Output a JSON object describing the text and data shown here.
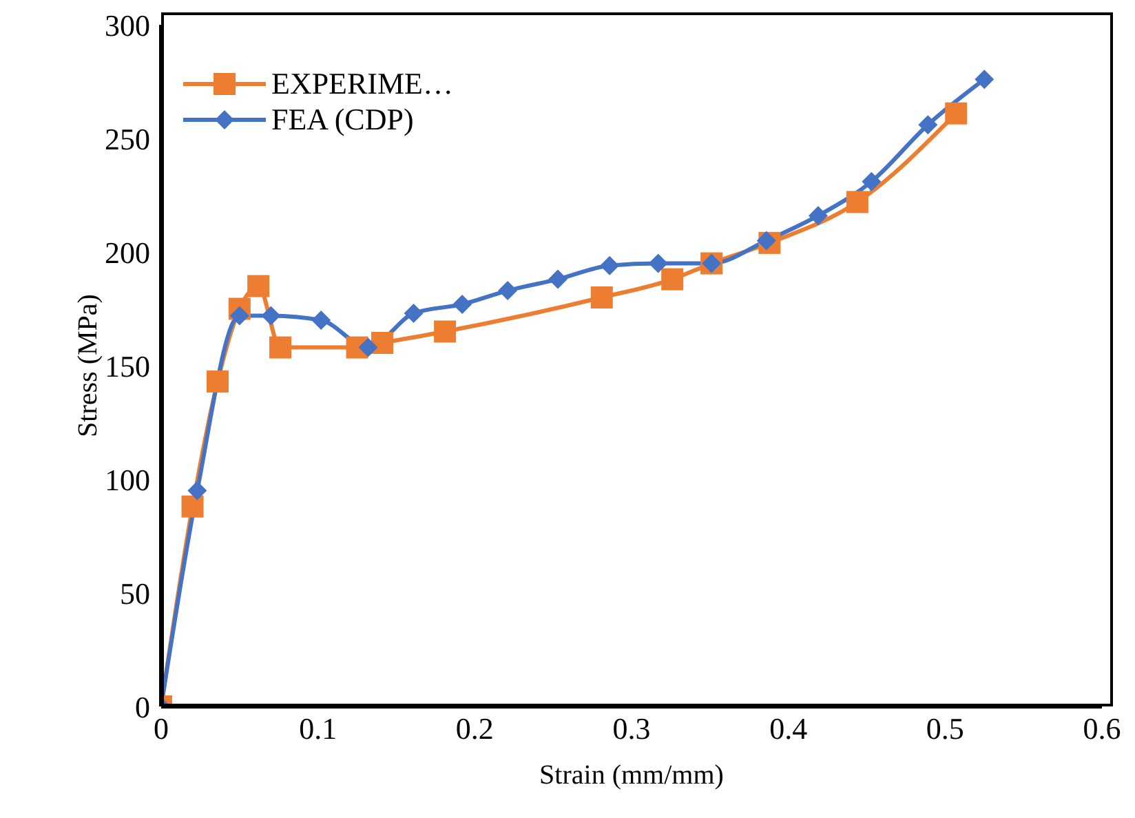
{
  "chart_data": {
    "type": "line",
    "xlabel": "Strain (mm/mm)",
    "ylabel": "Stress (MPa)",
    "xlim": [
      0,
      0.6
    ],
    "xticks": [
      0,
      0.1,
      0.2,
      0.3,
      0.4,
      0.5,
      0.6
    ],
    "ylim": [
      0,
      300
    ],
    "yticks": [
      0,
      50,
      100,
      150,
      200,
      250,
      300
    ],
    "grid": false,
    "legend": "top left",
    "line_style": "solid",
    "series": [
      {
        "name": "EXPERIME…",
        "color": "#ed7d31",
        "marker": "square",
        "x": [
          0,
          0.02,
          0.036,
          0.05,
          0.062,
          0.076,
          0.125,
          0.141,
          0.181,
          0.281,
          0.326,
          0.351,
          0.388,
          0.444,
          0.507
        ],
        "values": [
          0,
          88,
          143,
          175,
          185,
          158,
          158,
          160,
          165,
          180,
          188,
          195,
          204,
          222,
          261
        ]
      },
      {
        "name": "FEA (CDP)",
        "color": "#4472c4",
        "marker": "diamond",
        "x": [
          0,
          0.023,
          0.05,
          0.07,
          0.102,
          0.132,
          0.161,
          0.192,
          0.221,
          0.253,
          0.286,
          0.317,
          0.351,
          0.386,
          0.419,
          0.453,
          0.489,
          0.525
        ],
        "values": [
          0,
          95,
          172,
          172,
          170,
          158,
          173,
          177,
          183,
          188,
          194,
          195,
          195,
          205,
          216,
          231,
          256,
          276
        ]
      }
    ]
  }
}
